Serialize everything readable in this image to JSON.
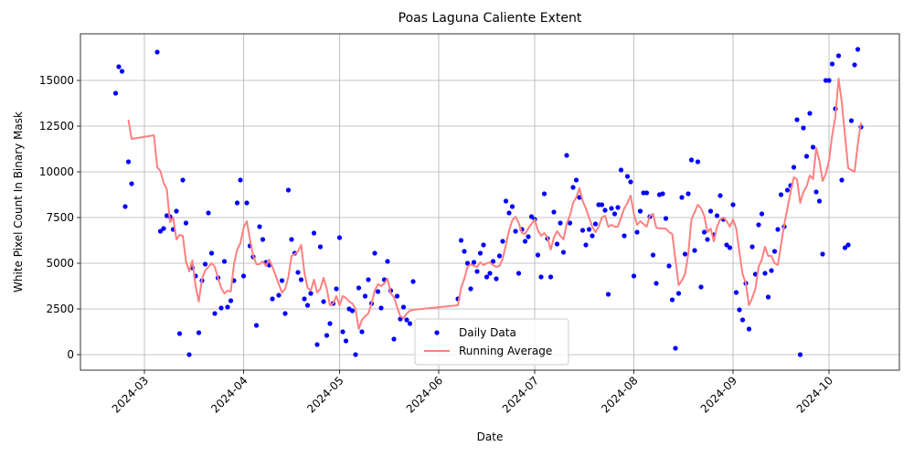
{
  "chart_data": {
    "type": "scatter",
    "title": "Poas Laguna Caliente Extent",
    "x_label": "Date",
    "y_label": "White Pixel Count In Binary Mask",
    "xlim": [
      "2024-02-10",
      "2024-10-23"
    ],
    "ylim": [
      -850,
      17550
    ],
    "xticks": [
      {
        "value": "2024-03-01",
        "label": "2024-03"
      },
      {
        "value": "2024-04-01",
        "label": "2024-04"
      },
      {
        "value": "2024-05-01",
        "label": "2024-05"
      },
      {
        "value": "2024-06-01",
        "label": "2024-06"
      },
      {
        "value": "2024-07-01",
        "label": "2024-07"
      },
      {
        "value": "2024-08-01",
        "label": "2024-08"
      },
      {
        "value": "2024-09-01",
        "label": "2024-09"
      },
      {
        "value": "2024-10-01",
        "label": "2024-10"
      }
    ],
    "yticks": [
      0,
      2500,
      5000,
      7500,
      10000,
      12500,
      15000
    ],
    "grid": true,
    "legend": "lower center",
    "series": [
      {
        "name": "Daily Data",
        "type": "scatter",
        "color": "#0000ff",
        "x": [
          "2024-02-21",
          "2024-02-22",
          "2024-02-23",
          "2024-02-24",
          "2024-02-25",
          "2024-02-26",
          "2024-03-05",
          "2024-03-06",
          "2024-03-07",
          "2024-03-08",
          "2024-03-09",
          "2024-03-10",
          "2024-03-11",
          "2024-03-12",
          "2024-03-13",
          "2024-03-14",
          "2024-03-15",
          "2024-03-16",
          "2024-03-17",
          "2024-03-18",
          "2024-03-19",
          "2024-03-20",
          "2024-03-21",
          "2024-03-22",
          "2024-03-23",
          "2024-03-24",
          "2024-03-25",
          "2024-03-26",
          "2024-03-27",
          "2024-03-28",
          "2024-03-29",
          "2024-03-30",
          "2024-03-31",
          "2024-04-01",
          "2024-04-02",
          "2024-04-03",
          "2024-04-04",
          "2024-04-05",
          "2024-04-06",
          "2024-04-07",
          "2024-04-08",
          "2024-04-09",
          "2024-04-10",
          "2024-04-12",
          "2024-04-13",
          "2024-04-14",
          "2024-04-15",
          "2024-04-16",
          "2024-04-17",
          "2024-04-18",
          "2024-04-19",
          "2024-04-20",
          "2024-04-21",
          "2024-04-22",
          "2024-04-23",
          "2024-04-24",
          "2024-04-25",
          "2024-04-26",
          "2024-04-27",
          "2024-04-28",
          "2024-04-29",
          "2024-04-30",
          "2024-05-01",
          "2024-05-02",
          "2024-05-03",
          "2024-05-04",
          "2024-05-05",
          "2024-05-06",
          "2024-05-07",
          "2024-05-08",
          "2024-05-09",
          "2024-05-10",
          "2024-05-11",
          "2024-05-12",
          "2024-05-13",
          "2024-05-14",
          "2024-05-15",
          "2024-05-16",
          "2024-05-17",
          "2024-05-18",
          "2024-05-19",
          "2024-05-20",
          "2024-05-21",
          "2024-05-22",
          "2024-05-23",
          "2024-05-24",
          "2024-06-07",
          "2024-06-08",
          "2024-06-09",
          "2024-06-10",
          "2024-06-11",
          "2024-06-12",
          "2024-06-13",
          "2024-06-14",
          "2024-06-15",
          "2024-06-16",
          "2024-06-17",
          "2024-06-18",
          "2024-06-19",
          "2024-06-20",
          "2024-06-21",
          "2024-06-22",
          "2024-06-23",
          "2024-06-24",
          "2024-06-25",
          "2024-06-26",
          "2024-06-27",
          "2024-06-28",
          "2024-06-29",
          "2024-06-30",
          "2024-07-01",
          "2024-07-02",
          "2024-07-03",
          "2024-07-04",
          "2024-07-05",
          "2024-07-06",
          "2024-07-07",
          "2024-07-08",
          "2024-07-09",
          "2024-07-10",
          "2024-07-11",
          "2024-07-12",
          "2024-07-13",
          "2024-07-14",
          "2024-07-15",
          "2024-07-16",
          "2024-07-17",
          "2024-07-18",
          "2024-07-19",
          "2024-07-20",
          "2024-07-21",
          "2024-07-22",
          "2024-07-23",
          "2024-07-24",
          "2024-07-25",
          "2024-07-26",
          "2024-07-27",
          "2024-07-28",
          "2024-07-29",
          "2024-07-30",
          "2024-07-31",
          "2024-08-01",
          "2024-08-02",
          "2024-08-03",
          "2024-08-04",
          "2024-08-05",
          "2024-08-06",
          "2024-08-07",
          "2024-08-08",
          "2024-08-09",
          "2024-08-10",
          "2024-08-11",
          "2024-08-12",
          "2024-08-13",
          "2024-08-14",
          "2024-08-15",
          "2024-08-16",
          "2024-08-17",
          "2024-08-18",
          "2024-08-19",
          "2024-08-20",
          "2024-08-21",
          "2024-08-22",
          "2024-08-23",
          "2024-08-24",
          "2024-08-25",
          "2024-08-26",
          "2024-08-27",
          "2024-08-28",
          "2024-08-29",
          "2024-08-30",
          "2024-08-31",
          "2024-09-01",
          "2024-09-02",
          "2024-09-03",
          "2024-09-04",
          "2024-09-05",
          "2024-09-06",
          "2024-09-07",
          "2024-09-08",
          "2024-09-09",
          "2024-09-10",
          "2024-09-11",
          "2024-09-12",
          "2024-09-13",
          "2024-09-14",
          "2024-09-15",
          "2024-09-16",
          "2024-09-17",
          "2024-09-18",
          "2024-09-19",
          "2024-09-20",
          "2024-09-21",
          "2024-09-22",
          "2024-09-23",
          "2024-09-24",
          "2024-09-25",
          "2024-09-26",
          "2024-09-27",
          "2024-09-28",
          "2024-09-29",
          "2024-09-30",
          "2024-10-01",
          "2024-10-02",
          "2024-10-03",
          "2024-10-04",
          "2024-10-05",
          "2024-10-06",
          "2024-10-07",
          "2024-10-08",
          "2024-10-09",
          "2024-10-10",
          "2024-10-11"
        ],
        "values": [
          14300,
          15750,
          15500,
          8100,
          10550,
          9350,
          16550,
          6750,
          6900,
          7600,
          7550,
          6850,
          7850,
          1150,
          9550,
          7200,
          0,
          4750,
          4300,
          1200,
          4050,
          4950,
          7750,
          5550,
          2250,
          4200,
          2550,
          5100,
          2600,
          2950,
          4050,
          8300,
          9550,
          4300,
          8300,
          5950,
          5350,
          1600,
          7000,
          6300,
          5050,
          4900,
          3050,
          3250,
          4050,
          2250,
          9000,
          6300,
          5550,
          4500,
          4100,
          3050,
          2700,
          3350,
          6650,
          550,
          5900,
          2900,
          1050,
          1700,
          2800,
          3600,
          6400,
          1250,
          750,
          2500,
          2400,
          0,
          3650,
          1250,
          3200,
          4100,
          2800,
          5550,
          3450,
          2550,
          4100,
          5100,
          3500,
          850,
          3200,
          1950,
          2600,
          1900,
          1700,
          4000,
          3050,
          6250,
          5650,
          5000,
          3600,
          5050,
          4550,
          5550,
          6000,
          4250,
          4450,
          5100,
          4150,
          5400,
          6200,
          8400,
          7750,
          8100,
          6750,
          4450,
          6850,
          6200,
          6450,
          7550,
          7400,
          5450,
          4250,
          8800,
          6350,
          4250,
          7800,
          6050,
          7200,
          5600,
          10900,
          7200,
          9150,
          9550,
          8600,
          6800,
          6000,
          6850,
          6500,
          7150,
          8200,
          8200,
          7900,
          3300,
          8000,
          7700,
          8050,
          10100,
          6500,
          9750,
          9450,
          4300,
          6700,
          7850,
          8850,
          8850,
          7550,
          5450,
          3900,
          8750,
          8800,
          7450,
          4850,
          3000,
          350,
          3350,
          8600,
          5500,
          8800,
          10650,
          5700,
          10550,
          3700,
          6700,
          6300,
          7850,
          6550,
          7600,
          8700,
          7400,
          6000,
          5850,
          8200,
          3400,
          2450,
          1900,
          3900,
          1400,
          5900,
          4400,
          7100,
          7700,
          4450,
          3150,
          4600,
          5650,
          6850,
          8750,
          7000,
          9000,
          9250,
          10250,
          12850,
          0,
          12400,
          10850,
          13200,
          11350,
          8900,
          8400,
          5500,
          15000,
          15000,
          15900,
          13450,
          16350,
          9550,
          5850,
          6000,
          12800,
          15850,
          16700,
          12450
        ]
      },
      {
        "name": "Running Average",
        "type": "line",
        "color": "#ff8080",
        "x": [
          "2024-02-25",
          "2024-02-26",
          "2024-03-04",
          "2024-03-05",
          "2024-03-06",
          "2024-03-07",
          "2024-03-08",
          "2024-03-09",
          "2024-03-10",
          "2024-03-11",
          "2024-03-12",
          "2024-03-13",
          "2024-03-14",
          "2024-03-15",
          "2024-03-16",
          "2024-03-17",
          "2024-03-18",
          "2024-03-19",
          "2024-03-20",
          "2024-03-21",
          "2024-03-22",
          "2024-03-23",
          "2024-03-24",
          "2024-03-25",
          "2024-03-26",
          "2024-03-27",
          "2024-03-28",
          "2024-03-29",
          "2024-03-30",
          "2024-03-31",
          "2024-04-01",
          "2024-04-02",
          "2024-04-03",
          "2024-04-04",
          "2024-04-05",
          "2024-04-06",
          "2024-04-07",
          "2024-04-08",
          "2024-04-09",
          "2024-04-10",
          "2024-04-11",
          "2024-04-12",
          "2024-04-13",
          "2024-04-14",
          "2024-04-15",
          "2024-04-16",
          "2024-04-17",
          "2024-04-18",
          "2024-04-19",
          "2024-04-20",
          "2024-04-21",
          "2024-04-22",
          "2024-04-23",
          "2024-04-24",
          "2024-04-25",
          "2024-04-26",
          "2024-04-27",
          "2024-04-28",
          "2024-04-29",
          "2024-04-30",
          "2024-05-01",
          "2024-05-02",
          "2024-05-03",
          "2024-05-04",
          "2024-05-05",
          "2024-05-06",
          "2024-05-07",
          "2024-05-08",
          "2024-05-09",
          "2024-05-10",
          "2024-05-11",
          "2024-05-12",
          "2024-05-13",
          "2024-05-14",
          "2024-05-15",
          "2024-05-16",
          "2024-05-17",
          "2024-05-18",
          "2024-05-19",
          "2024-05-20",
          "2024-05-21",
          "2024-05-22",
          "2024-05-23",
          "2024-05-24",
          "2024-06-07",
          "2024-06-08",
          "2024-06-09",
          "2024-06-10",
          "2024-06-11",
          "2024-06-12",
          "2024-06-13",
          "2024-06-14",
          "2024-06-15",
          "2024-06-16",
          "2024-06-17",
          "2024-06-18",
          "2024-06-19",
          "2024-06-20",
          "2024-06-21",
          "2024-06-22",
          "2024-06-23",
          "2024-06-24",
          "2024-06-25",
          "2024-06-26",
          "2024-06-27",
          "2024-06-28",
          "2024-06-29",
          "2024-06-30",
          "2024-07-01",
          "2024-07-02",
          "2024-07-03",
          "2024-07-04",
          "2024-07-05",
          "2024-07-06",
          "2024-07-07",
          "2024-07-08",
          "2024-07-09",
          "2024-07-10",
          "2024-07-11",
          "2024-07-12",
          "2024-07-13",
          "2024-07-14",
          "2024-07-15",
          "2024-07-16",
          "2024-07-17",
          "2024-07-18",
          "2024-07-19",
          "2024-07-20",
          "2024-07-21",
          "2024-07-22",
          "2024-07-23",
          "2024-07-24",
          "2024-07-25",
          "2024-07-26",
          "2024-07-27",
          "2024-07-28",
          "2024-07-29",
          "2024-07-30",
          "2024-07-31",
          "2024-08-01",
          "2024-08-02",
          "2024-08-03",
          "2024-08-04",
          "2024-08-05",
          "2024-08-06",
          "2024-08-07",
          "2024-08-08",
          "2024-08-09",
          "2024-08-10",
          "2024-08-11",
          "2024-08-12",
          "2024-08-13",
          "2024-08-14",
          "2024-08-15",
          "2024-08-16",
          "2024-08-17",
          "2024-08-18",
          "2024-08-19",
          "2024-08-20",
          "2024-08-21",
          "2024-08-22",
          "2024-08-23",
          "2024-08-24",
          "2024-08-25",
          "2024-08-26",
          "2024-08-27",
          "2024-08-28",
          "2024-08-29",
          "2024-08-30",
          "2024-08-31",
          "2024-09-01",
          "2024-09-02",
          "2024-09-03",
          "2024-09-04",
          "2024-09-05",
          "2024-09-06",
          "2024-09-07",
          "2024-09-08",
          "2024-09-09",
          "2024-09-10",
          "2024-09-11",
          "2024-09-12",
          "2024-09-13",
          "2024-09-14",
          "2024-09-15",
          "2024-09-16",
          "2024-09-17",
          "2024-09-18",
          "2024-09-19",
          "2024-09-20",
          "2024-09-21",
          "2024-09-22",
          "2024-09-23",
          "2024-09-24",
          "2024-09-25",
          "2024-09-26",
          "2024-09-27",
          "2024-09-28",
          "2024-09-29",
          "2024-09-30",
          "2024-10-01",
          "2024-10-02",
          "2024-10-03",
          "2024-10-04",
          "2024-10-05",
          "2024-10-06",
          "2024-10-07",
          "2024-10-08",
          "2024-10-09",
          "2024-10-10",
          "2024-10-11"
        ],
        "values": [
          12850,
          11800,
          12000,
          10250,
          10050,
          9400,
          9050,
          7250,
          7500,
          6300,
          6550,
          6500,
          5100,
          4550,
          5150,
          3750,
          2900,
          4150,
          4600,
          4800,
          5000,
          4800,
          4200,
          3650,
          3350,
          3500,
          3450,
          4950,
          5750,
          6100,
          6950,
          7300,
          6300,
          5400,
          4950,
          4950,
          5100,
          4850,
          5200,
          4800,
          4350,
          3850,
          3400,
          3600,
          4250,
          5400,
          5500,
          5650,
          6000,
          4500,
          3650,
          3500,
          4100,
          3400,
          3600,
          4200,
          3600,
          2700,
          2800,
          3200,
          2700,
          3200,
          3100,
          2900,
          2800,
          2500,
          1400,
          1900,
          2100,
          2250,
          2800,
          3500,
          3850,
          3750,
          3900,
          4150,
          3350,
          3150,
          2600,
          2100,
          2000,
          2250,
          2400,
          2450,
          2700,
          3650,
          4150,
          4800,
          4950,
          4850,
          4800,
          5050,
          4900,
          5000,
          5050,
          4900,
          4800,
          4850,
          5250,
          6000,
          6800,
          7350,
          7550,
          7200,
          6650,
          6600,
          6900,
          7150,
          7400,
          6800,
          6500,
          6650,
          6400,
          5750,
          6400,
          6750,
          6500,
          6300,
          7150,
          7600,
          8300,
          8600,
          9100,
          8400,
          8000,
          7500,
          7000,
          6700,
          7000,
          7500,
          7600,
          7000,
          7100,
          7000,
          7000,
          7500,
          8000,
          8300,
          8700,
          7700,
          7100,
          7300,
          7150,
          7000,
          7600,
          7700,
          6950,
          6900,
          6900,
          6900,
          6700,
          6600,
          5200,
          3800,
          4050,
          4400,
          5500,
          7400,
          7800,
          8200,
          8000,
          7600,
          6700,
          6900,
          6200,
          7000,
          7400,
          7500,
          7300,
          7000,
          7400,
          6900,
          5600,
          4400,
          3900,
          2700,
          3100,
          3600,
          4800,
          5200,
          5900,
          5400,
          5400,
          5000,
          4900,
          6000,
          7100,
          8000,
          8900,
          9700,
          9600,
          8300,
          8900,
          9200,
          9800,
          9600,
          11300,
          10600,
          9500,
          9900,
          10600,
          12000,
          13000,
          15100,
          13800,
          12000,
          10200,
          10100,
          10000,
          11500,
          12700
        ]
      }
    ]
  }
}
